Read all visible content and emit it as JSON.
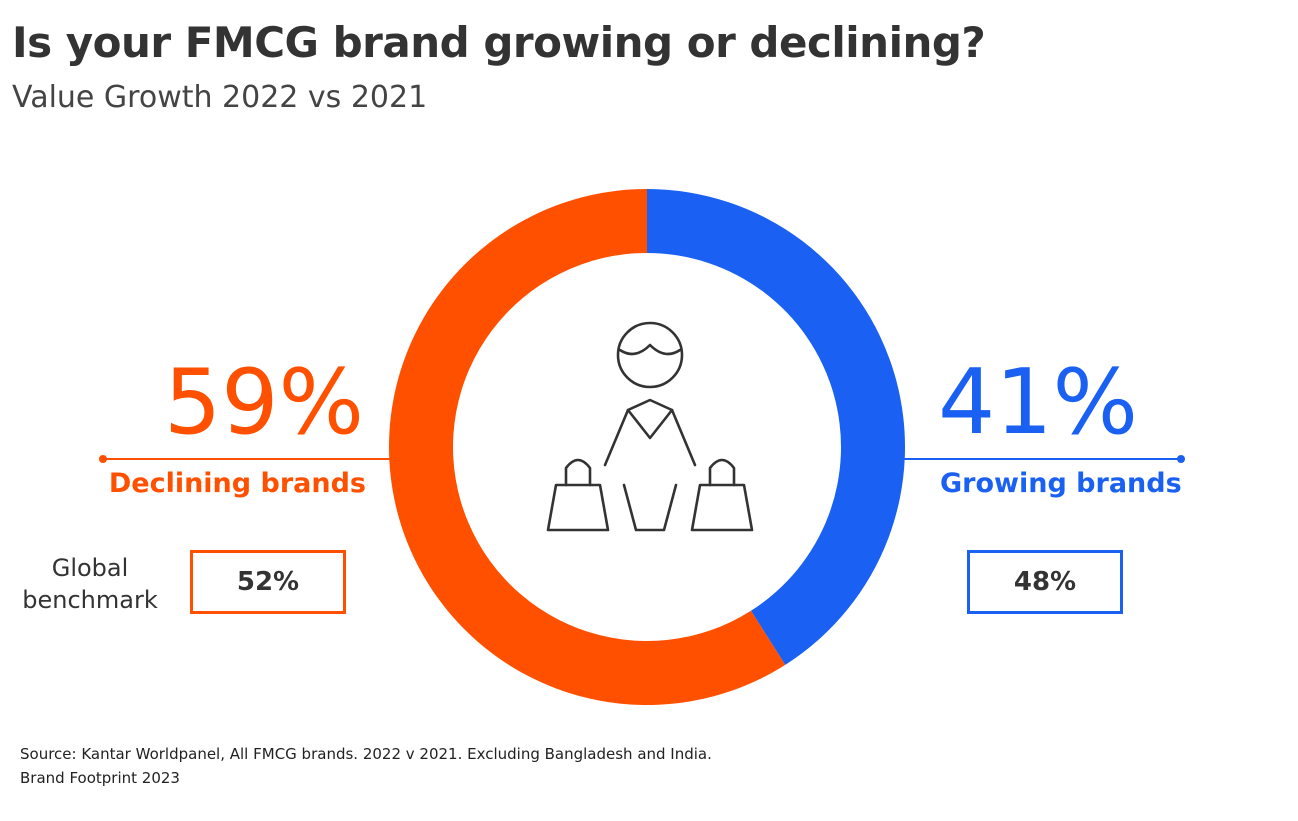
{
  "header": {
    "title": "Is your FMCG brand growing or declining?",
    "subtitle": "Value Growth 2022 vs 2021"
  },
  "chart_data": {
    "type": "pie",
    "style": "donut",
    "start_angle": "12 o'clock, clockwise",
    "series": [
      {
        "name": "Declining brands",
        "pct_label": "59%",
        "value": 59,
        "benchmark": "52%",
        "color": "#FF5000"
      },
      {
        "name": "Growing brands",
        "pct_label": "41%",
        "value": 41,
        "benchmark": "48%",
        "color": "#1A60F2"
      }
    ],
    "benchmark_label": "Global benchmark",
    "center_icon": "shopper-with-bags-icon"
  },
  "footer": {
    "source": "Source: Kantar Worldpanel, All FMCG brands. 2022 v 2021. Excluding Bangladesh and India.",
    "credit": "Brand Footprint 2023"
  }
}
